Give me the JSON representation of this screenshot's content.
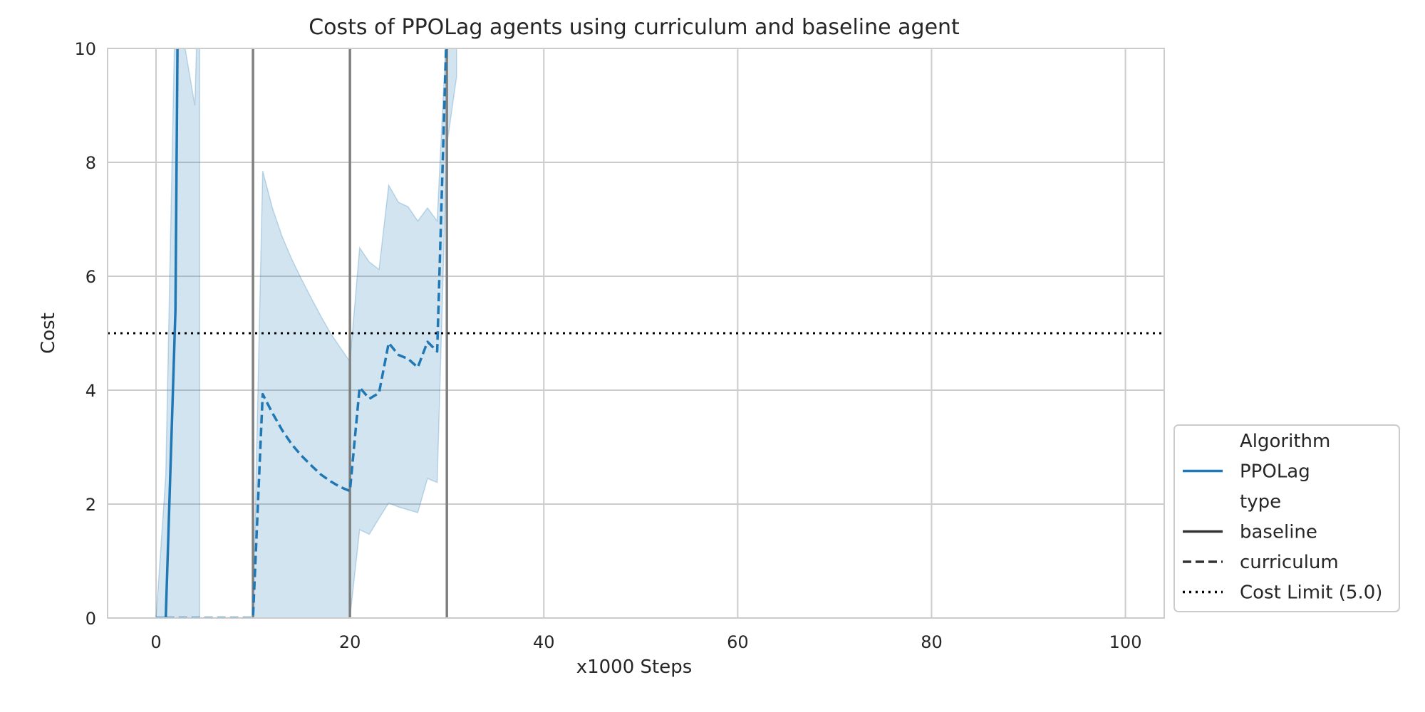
{
  "chart_data": {
    "type": "line",
    "title": "Costs of PPOLag agents using curriculum and baseline agent",
    "xlabel": "x1000 Steps",
    "ylabel": "Cost",
    "xlim": [
      -5,
      104
    ],
    "ylim": [
      0,
      10
    ],
    "x_ticks": [
      "0",
      "20",
      "40",
      "60",
      "80",
      "100"
    ],
    "y_ticks": [
      "0",
      "2",
      "4",
      "6",
      "8",
      "10"
    ],
    "grid": true,
    "legend_position": "lower-right-outside",
    "cost_limit": 5.0,
    "phase_boundaries": [
      10,
      20,
      30
    ],
    "series": [
      {
        "name": "PPOLag",
        "type": "baseline",
        "color": "#1f77b4",
        "dash": "solid",
        "x": [
          0,
          1,
          2,
          2.3
        ],
        "y": [
          0,
          0,
          5.4,
          12
        ],
        "band_lower": [
          0,
          0,
          0,
          0,
          0
        ],
        "band_upper": [
          0,
          2.5,
          11,
          9,
          12
        ],
        "band_x": [
          0,
          1,
          2,
          4,
          4.5
        ]
      },
      {
        "name": "PPOLag",
        "type": "curriculum",
        "color": "#1f77b4",
        "dash": "dashed",
        "x": [
          1,
          10,
          11,
          12,
          13,
          14,
          15,
          16,
          17,
          18,
          19,
          20,
          21,
          22,
          23,
          24,
          25,
          26,
          27,
          28,
          29,
          30,
          31
        ],
        "y": [
          0,
          0,
          3.93,
          3.6,
          3.3,
          3.05,
          2.85,
          2.68,
          2.52,
          2.4,
          2.3,
          2.23,
          4.05,
          3.85,
          3.95,
          4.83,
          4.62,
          4.55,
          4.4,
          4.85,
          4.68,
          10.5,
          12
        ],
        "band_x": [
          10,
          11,
          12,
          13,
          14,
          15,
          16,
          17,
          18,
          19,
          20,
          21,
          22,
          23,
          24,
          25,
          26,
          27,
          28,
          29,
          30,
          31
        ],
        "band_lower": [
          0,
          0,
          0,
          0,
          0,
          0,
          0,
          0,
          0,
          0,
          0,
          1.55,
          1.47,
          1.75,
          2.02,
          1.95,
          1.9,
          1.85,
          2.45,
          2.38,
          8.3,
          9.5
        ],
        "band_upper": [
          0,
          7.85,
          7.2,
          6.7,
          6.3,
          5.95,
          5.62,
          5.3,
          5.0,
          4.75,
          4.5,
          6.5,
          6.25,
          6.12,
          7.6,
          7.3,
          7.22,
          6.97,
          7.2,
          6.97,
          10.5,
          12
        ]
      }
    ],
    "legend": {
      "entries": [
        {
          "label": "Algorithm",
          "style": "header"
        },
        {
          "label": "PPOLag",
          "style": "solid",
          "color": "#1f77b4"
        },
        {
          "label": "type",
          "style": "header"
        },
        {
          "label": "baseline",
          "style": "solid",
          "color": "#333333"
        },
        {
          "label": "curriculum",
          "style": "dashed",
          "color": "#333333"
        },
        {
          "label": "Cost Limit (5.0)",
          "style": "dotted",
          "color": "#000000"
        }
      ]
    }
  }
}
